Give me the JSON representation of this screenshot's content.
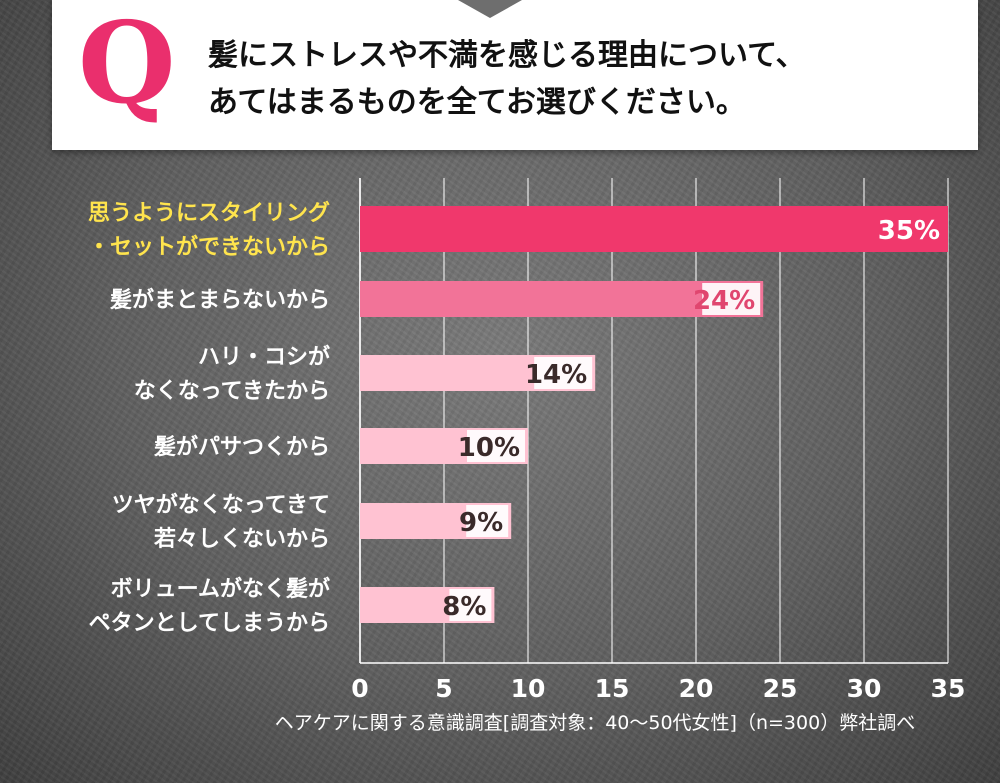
{
  "question": {
    "letter": "Q",
    "line1": "髪にストレスや不満を感じる理由について、",
    "line2": "あてはまるものを全てお選びください。"
  },
  "chart_data": {
    "type": "bar",
    "orientation": "horizontal",
    "categories": [
      [
        "思うようにスタイリング",
        "・セットができないから"
      ],
      [
        "髪がまとまらないから"
      ],
      [
        "ハリ・コシが",
        "なくなってきたから"
      ],
      [
        "髪がパサつくから"
      ],
      [
        "ツヤがなくなってきて",
        "若々しくないから"
      ],
      [
        "ボリュームがなく髪が",
        "ペタンとしてしまうから"
      ]
    ],
    "values": [
      35,
      24,
      14,
      10,
      9,
      8
    ],
    "value_labels": [
      "35%",
      "24%",
      "14%",
      "10%",
      "9%",
      "8%"
    ],
    "xlim": [
      0,
      35
    ],
    "xticks": [
      0,
      5,
      10,
      15,
      20,
      25,
      30,
      35
    ],
    "grid": true,
    "bar_colors": [
      "#f0386c",
      "#f27398",
      "#ffc2d2",
      "#ffc2d2",
      "#ffc2d2",
      "#ffc2d2"
    ],
    "highlight_label_color": "#ffe44d",
    "label_color": "#ffffff"
  },
  "footnote": "ヘアケアに関する意識調査[調査対象：40～50代女性]（n=300）弊社調べ"
}
